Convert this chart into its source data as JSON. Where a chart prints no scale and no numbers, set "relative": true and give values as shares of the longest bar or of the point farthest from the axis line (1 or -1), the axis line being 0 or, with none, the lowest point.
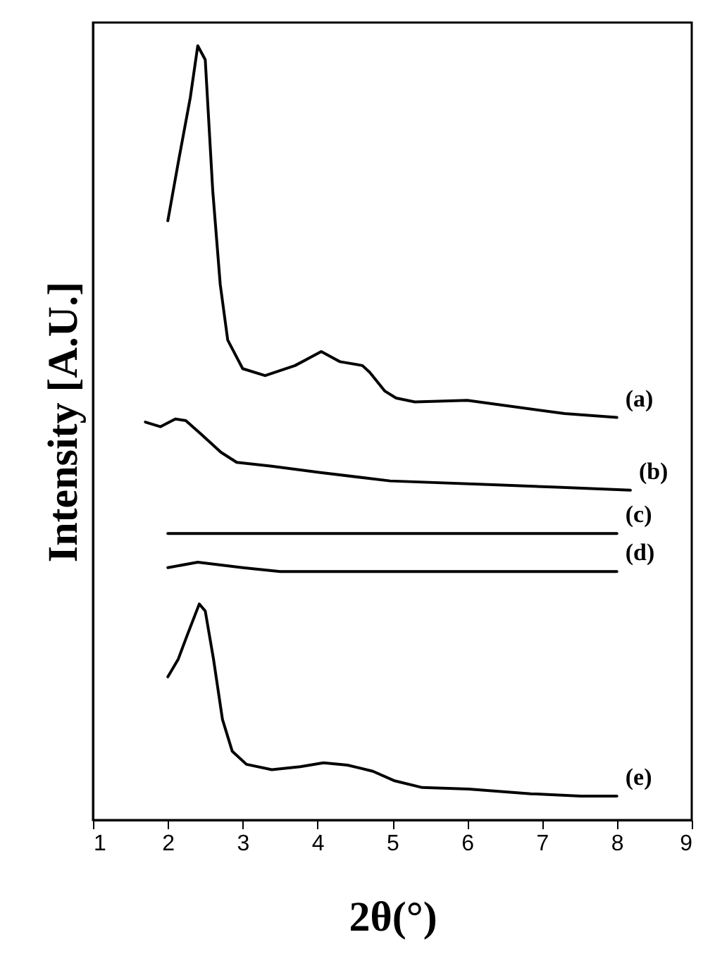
{
  "chart_data": {
    "type": "line",
    "xlabel": "2θ(°)",
    "ylabel": "Intensity [A.U.]",
    "relative": true,
    "xlim": [
      1,
      9
    ],
    "xticks": [
      1,
      2,
      3,
      4,
      5,
      6,
      7,
      8,
      9
    ],
    "series": [
      {
        "name": "(a)",
        "color": "#000000",
        "x": [
          2.0,
          2.15,
          2.3,
          2.4,
          2.5,
          2.6,
          2.7,
          2.8,
          3.0,
          3.3,
          3.7,
          4.05,
          4.3,
          4.6,
          4.7,
          4.9,
          5.05,
          5.3,
          6.0,
          7.3,
          8.0
        ],
        "values": [
          0.774,
          0.855,
          0.933,
          1.0,
          0.982,
          0.813,
          0.692,
          0.62,
          0.583,
          0.574,
          0.587,
          0.605,
          0.592,
          0.587,
          0.578,
          0.554,
          0.545,
          0.54,
          0.542,
          0.525,
          0.52
        ]
      },
      {
        "name": "(b)",
        "color": "#000000",
        "x": [
          1.7,
          1.9,
          2.1,
          2.24,
          2.45,
          2.71,
          2.92,
          3.39,
          4.02,
          4.97,
          6.34,
          7.2,
          8.18
        ],
        "values": [
          0.514,
          0.508,
          0.518,
          0.516,
          0.498,
          0.475,
          0.462,
          0.457,
          0.449,
          0.438,
          0.433,
          0.43,
          0.426
        ]
      },
      {
        "name": "(c)",
        "color": "#000000",
        "x": [
          2.0,
          8.0
        ],
        "values": [
          0.37,
          0.37
        ]
      },
      {
        "name": "(d)",
        "color": "#000000",
        "x": [
          2.0,
          2.4,
          3.0,
          3.5,
          8.0
        ],
        "values": [
          0.326,
          0.333,
          0.326,
          0.321,
          0.321
        ]
      },
      {
        "name": "(e)",
        "color": "#000000",
        "x": [
          2.0,
          2.14,
          2.26,
          2.42,
          2.5,
          2.61,
          2.73,
          2.86,
          3.05,
          3.39,
          3.77,
          4.08,
          4.4,
          4.74,
          5.02,
          5.4,
          6.02,
          6.85,
          7.52,
          8.0
        ],
        "values": [
          0.185,
          0.208,
          0.239,
          0.279,
          0.27,
          0.208,
          0.13,
          0.089,
          0.072,
          0.065,
          0.069,
          0.074,
          0.071,
          0.063,
          0.051,
          0.042,
          0.04,
          0.034,
          0.031,
          0.031
        ]
      }
    ]
  }
}
